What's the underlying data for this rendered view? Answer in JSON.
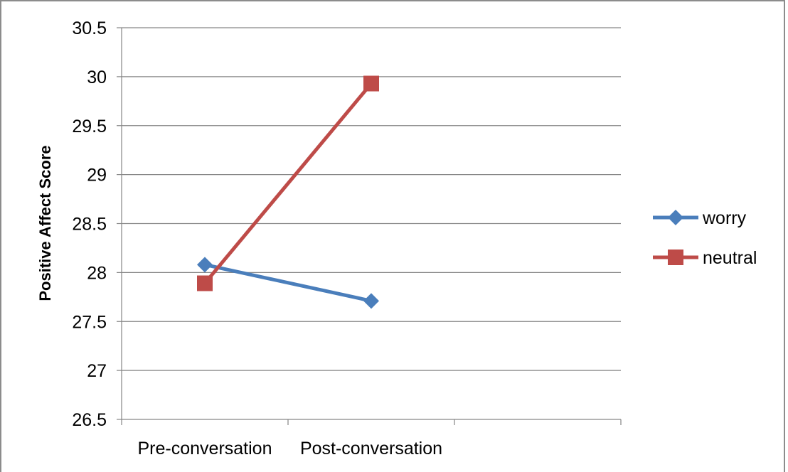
{
  "chart_data": {
    "type": "line",
    "title": "",
    "xlabel": "",
    "ylabel": "Positive Affect Score",
    "categories": [
      "Pre-conversation",
      "Post-conversation"
    ],
    "ylim": [
      26.5,
      30.5
    ],
    "yticks": [
      "26.5",
      "27",
      "27.5",
      "28",
      "28.5",
      "29",
      "29.5",
      "30",
      "30.5"
    ],
    "grid": true,
    "legend_position": "right",
    "series": [
      {
        "name": "worry",
        "values": [
          28.08,
          27.71
        ],
        "color": "#4a7ebb",
        "marker": "diamond"
      },
      {
        "name": "neutral",
        "values": [
          27.89,
          29.93
        ],
        "color": "#be4b48",
        "marker": "square"
      }
    ]
  }
}
